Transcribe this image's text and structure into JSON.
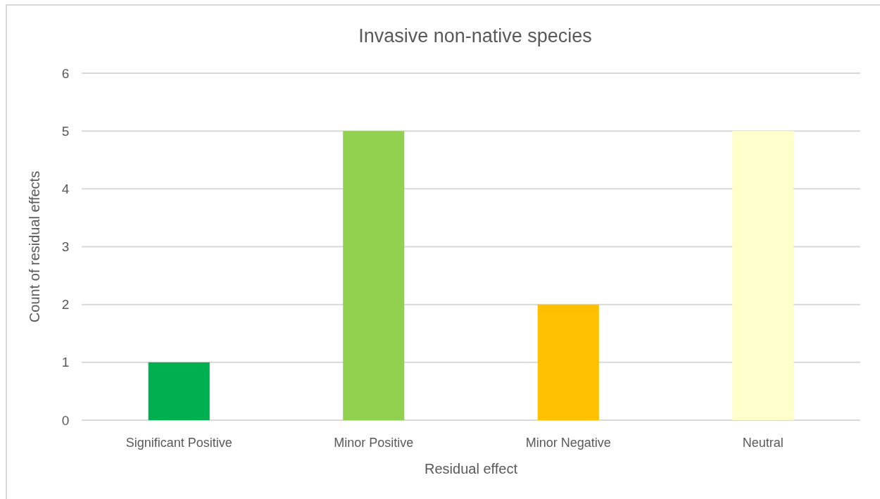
{
  "chart_data": {
    "type": "bar",
    "title": "Invasive non-native species",
    "xlabel": "Residual effect",
    "ylabel": "Count of residual effects",
    "categories": [
      "Significant Positive",
      "Minor Positive",
      "Minor Negative",
      "Neutral"
    ],
    "values": [
      1,
      5,
      2,
      5
    ],
    "colors": [
      "#00b050",
      "#92d050",
      "#ffc000",
      "#ffffcc"
    ],
    "ylim": [
      0,
      6
    ],
    "yticks": [
      0,
      1,
      2,
      3,
      4,
      5,
      6
    ],
    "grid": "y"
  }
}
